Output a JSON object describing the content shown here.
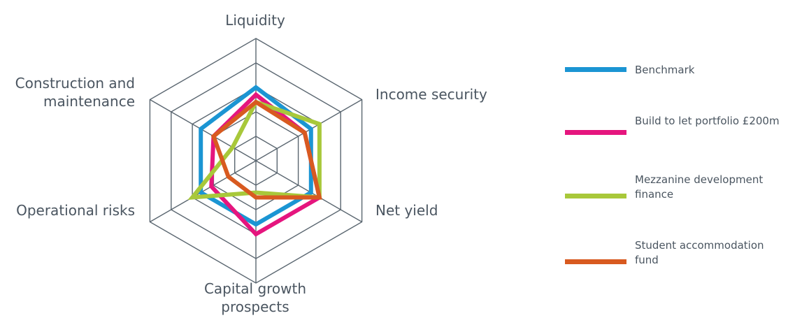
{
  "chart_data": {
    "type": "radar",
    "axes": [
      "Liquidity",
      "Income security",
      "Net yield",
      "Capital growth\nprospects",
      "Operational risks",
      "Construction and\nmaintenance"
    ],
    "rlim": [
      0,
      5
    ],
    "grid_rings": 5,
    "grid": true,
    "legend_position": "right",
    "series": [
      {
        "name": "Benchmark",
        "color": "#1b95d3",
        "values": [
          3.0,
          2.6,
          2.6,
          2.6,
          2.6,
          2.6
        ]
      },
      {
        "name": "Build to let portfolio £200m",
        "color": "#e5157e",
        "values": [
          2.7,
          2.3,
          3.0,
          3.0,
          2.1,
          2.0
        ]
      },
      {
        "name": "Mezzanine development finance",
        "color": "#a8c83a",
        "values": [
          2.4,
          3.0,
          3.0,
          1.3,
          3.0,
          1.1
        ]
      },
      {
        "name": "Student accommodation fund",
        "color": "#d85a20",
        "values": [
          2.4,
          2.3,
          3.0,
          1.5,
          1.3,
          2.0
        ]
      }
    ]
  }
}
